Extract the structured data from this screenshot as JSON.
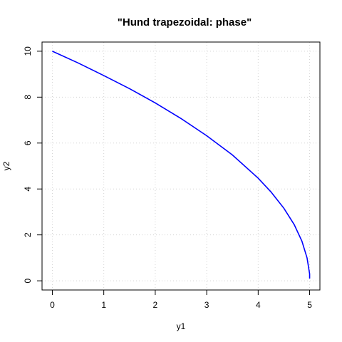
{
  "chart_data": {
    "type": "line",
    "title": "\"Hund trapezoidal: phase\"",
    "xlabel": "y1",
    "ylabel": "y2",
    "xlim": [
      -0.2,
      5.2
    ],
    "ylim": [
      -0.4,
      10.4
    ],
    "xticks": [
      0,
      1,
      2,
      3,
      4,
      5
    ],
    "yticks": [
      0,
      2,
      4,
      6,
      8,
      10
    ],
    "grid": true,
    "line_color": "#0000ff",
    "grid_color": "#d3d3d3",
    "x": [
      0,
      0.5,
      1,
      1.5,
      2,
      2.5,
      3,
      3.5,
      4,
      4.25,
      4.5,
      4.7,
      4.85,
      4.95,
      5.0,
      5.0
    ],
    "y": [
      10,
      9.49,
      8.94,
      8.37,
      7.75,
      7.07,
      6.32,
      5.48,
      4.47,
      3.87,
      3.16,
      2.45,
      1.73,
      1.0,
      0.3,
      0.1
    ]
  }
}
